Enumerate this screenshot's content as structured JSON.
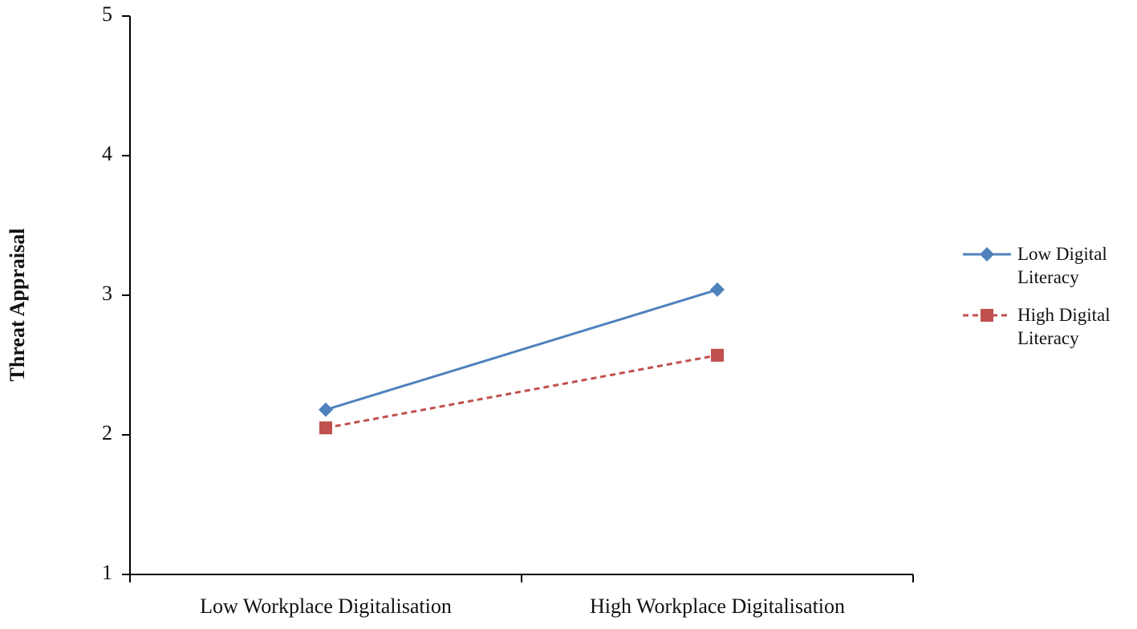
{
  "chart_data": {
    "type": "line",
    "y_label": "Threat Appraisal",
    "categories": [
      "Low Workplace Digitalisation",
      "High Workplace Digitalisation"
    ],
    "series": [
      {
        "name": "Low Digital Literacy",
        "color": "#4f81bd",
        "marker": "diamond",
        "dash": "solid",
        "values": [
          2.18,
          3.04
        ]
      },
      {
        "name": "High Digital Literacy",
        "color": "#c0504d",
        "marker": "square",
        "dash": "dashed",
        "values": [
          2.05,
          2.57
        ]
      }
    ],
    "ylim": [
      1,
      5
    ],
    "yticks": [
      1,
      2,
      3,
      4,
      5
    ],
    "grid": false,
    "legend": "right"
  }
}
